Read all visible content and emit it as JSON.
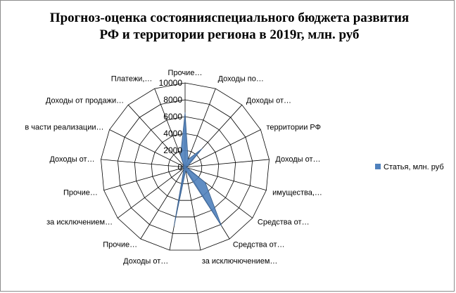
{
  "chart_data": {
    "type": "radar",
    "title_lines": [
      "Прогноз-оценка состоянияспециального бюджета развития",
      "РФ и территории региона в 2019г, млн. руб"
    ],
    "categories": [
      "Прочие…",
      "Доходы по…",
      "Доходы от…",
      "территории РФ",
      "Доходы от…",
      "имущества,…",
      "Средства от…",
      "Средства от…",
      "за исключючением…",
      "Доходы от…",
      "Прочие…",
      "за исключением…",
      "Прочие…",
      "Доходы от…",
      "в части реализации…",
      "Доходы от продажи…",
      "Платежи,…"
    ],
    "series": [
      {
        "name": "Статья, млн. руб",
        "color": "#4f81bd",
        "values": [
          6500,
          1000,
          3000,
          400,
          150,
          300,
          3000,
          8200,
          400,
          7100,
          300,
          200,
          300,
          200,
          250,
          200,
          1500
        ]
      }
    ],
    "rlim": [
      0,
      10000
    ],
    "ticks": [
      "0",
      "2000",
      "4000",
      "6000",
      "8000",
      "10000"
    ],
    "gridlines": true,
    "legend_position": "right"
  }
}
